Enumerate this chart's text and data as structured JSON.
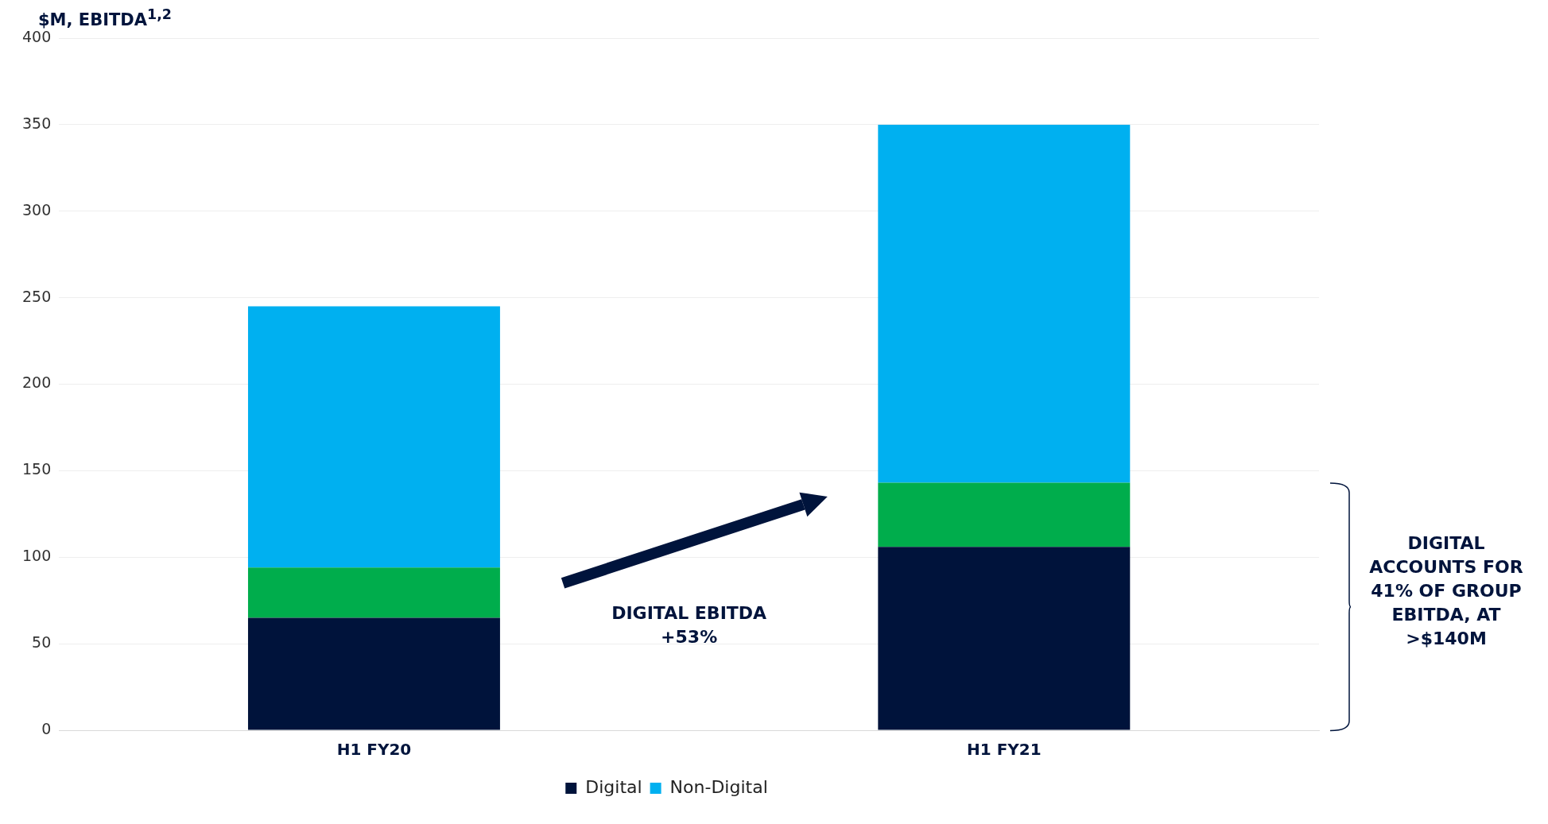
{
  "chart_data": {
    "type": "bar",
    "ylabel": "$M, EBITDA$^{1,2}$",
    "categories": [
      "H1 FY20",
      "H1 FY21"
    ],
    "stacked": true,
    "series": [
      {
        "name": "Digital",
        "color": "#00133b",
        "values": [
          65,
          106
        ]
      },
      {
        "color": "#00ad4c",
        "values": [
          29,
          37
        ]
      },
      {
        "name": "Non-Digital",
        "color": "#00b0f0",
        "values": [
          151,
          207
        ]
      }
    ],
    "ylim": [
      0,
      400
    ],
    "yticks": [
      0,
      50,
      100,
      150,
      200,
      250,
      300,
      350,
      400
    ],
    "grid": "y",
    "legend": "bottom",
    "annotations": [
      "DIGITAL EBITDA +53%",
      "DIGITAL ACCOUNTS FOR 41% OF GROUP EBITDA, AT >$140M"
    ]
  }
}
